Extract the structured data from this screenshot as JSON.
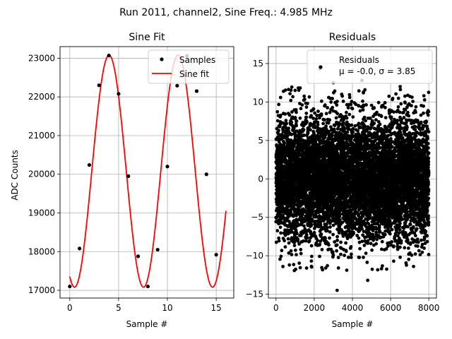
{
  "suptitle": "Run 2011, channel2, Sine Freq.: 4.985 MHz",
  "chart_data": [
    {
      "type": "scatter+line",
      "title": "Sine Fit",
      "xlabel": "Sample #",
      "ylabel": "ADC Counts",
      "xlim": [
        -1.0,
        16.8
      ],
      "ylim": [
        16800,
        23300
      ],
      "grid": true,
      "legend_position": "top-right",
      "xticks": [
        0,
        5,
        10,
        15
      ],
      "yticks": [
        17000,
        18000,
        19000,
        20000,
        21000,
        22000,
        23000
      ],
      "samples": {
        "name": "Samples",
        "x": [
          0,
          1,
          2,
          3,
          4,
          5,
          6,
          7,
          8,
          9,
          10,
          11,
          12,
          13,
          14,
          15
        ],
        "y": [
          17100,
          18080,
          20240,
          22300,
          23070,
          22080,
          19950,
          17880,
          17100,
          18050,
          20200,
          22290,
          23060,
          22150,
          20000,
          17920
        ]
      },
      "fit": {
        "name": "Sine fit",
        "color": "#ff0000",
        "amplitude": 3000,
        "offset": 20080,
        "period": 7.07,
        "peak_at": 4.02,
        "x_range": [
          0,
          16
        ]
      }
    },
    {
      "type": "scatter",
      "title": "Residuals",
      "xlabel": "Sample #",
      "xlim": [
        -400,
        8400
      ],
      "ylim": [
        -15.5,
        17.2
      ],
      "grid": true,
      "legend_position": "top-right",
      "xticks": [
        0,
        2000,
        4000,
        6000,
        8000
      ],
      "yticks": [
        -15,
        -10,
        -5,
        0,
        5,
        10,
        15
      ],
      "legend_label": "Residuals",
      "legend_stats": "μ = -0.0, σ = 3.85",
      "n_points": 8000,
      "mean": 0.0,
      "sigma": 3.85,
      "outliers": [
        {
          "x": 2300,
          "y": 14.3
        },
        {
          "x": 3200,
          "y": -14.5
        },
        {
          "x": 4800,
          "y": -13.2
        },
        {
          "x": 3000,
          "y": 12.5
        },
        {
          "x": 4500,
          "y": 12.8
        },
        {
          "x": 1000,
          "y": 11.5
        },
        {
          "x": 1600,
          "y": -11.6
        },
        {
          "x": 7200,
          "y": -11.4
        },
        {
          "x": 6500,
          "y": 12.0
        },
        {
          "x": 700,
          "y": -11.2
        }
      ]
    }
  ]
}
